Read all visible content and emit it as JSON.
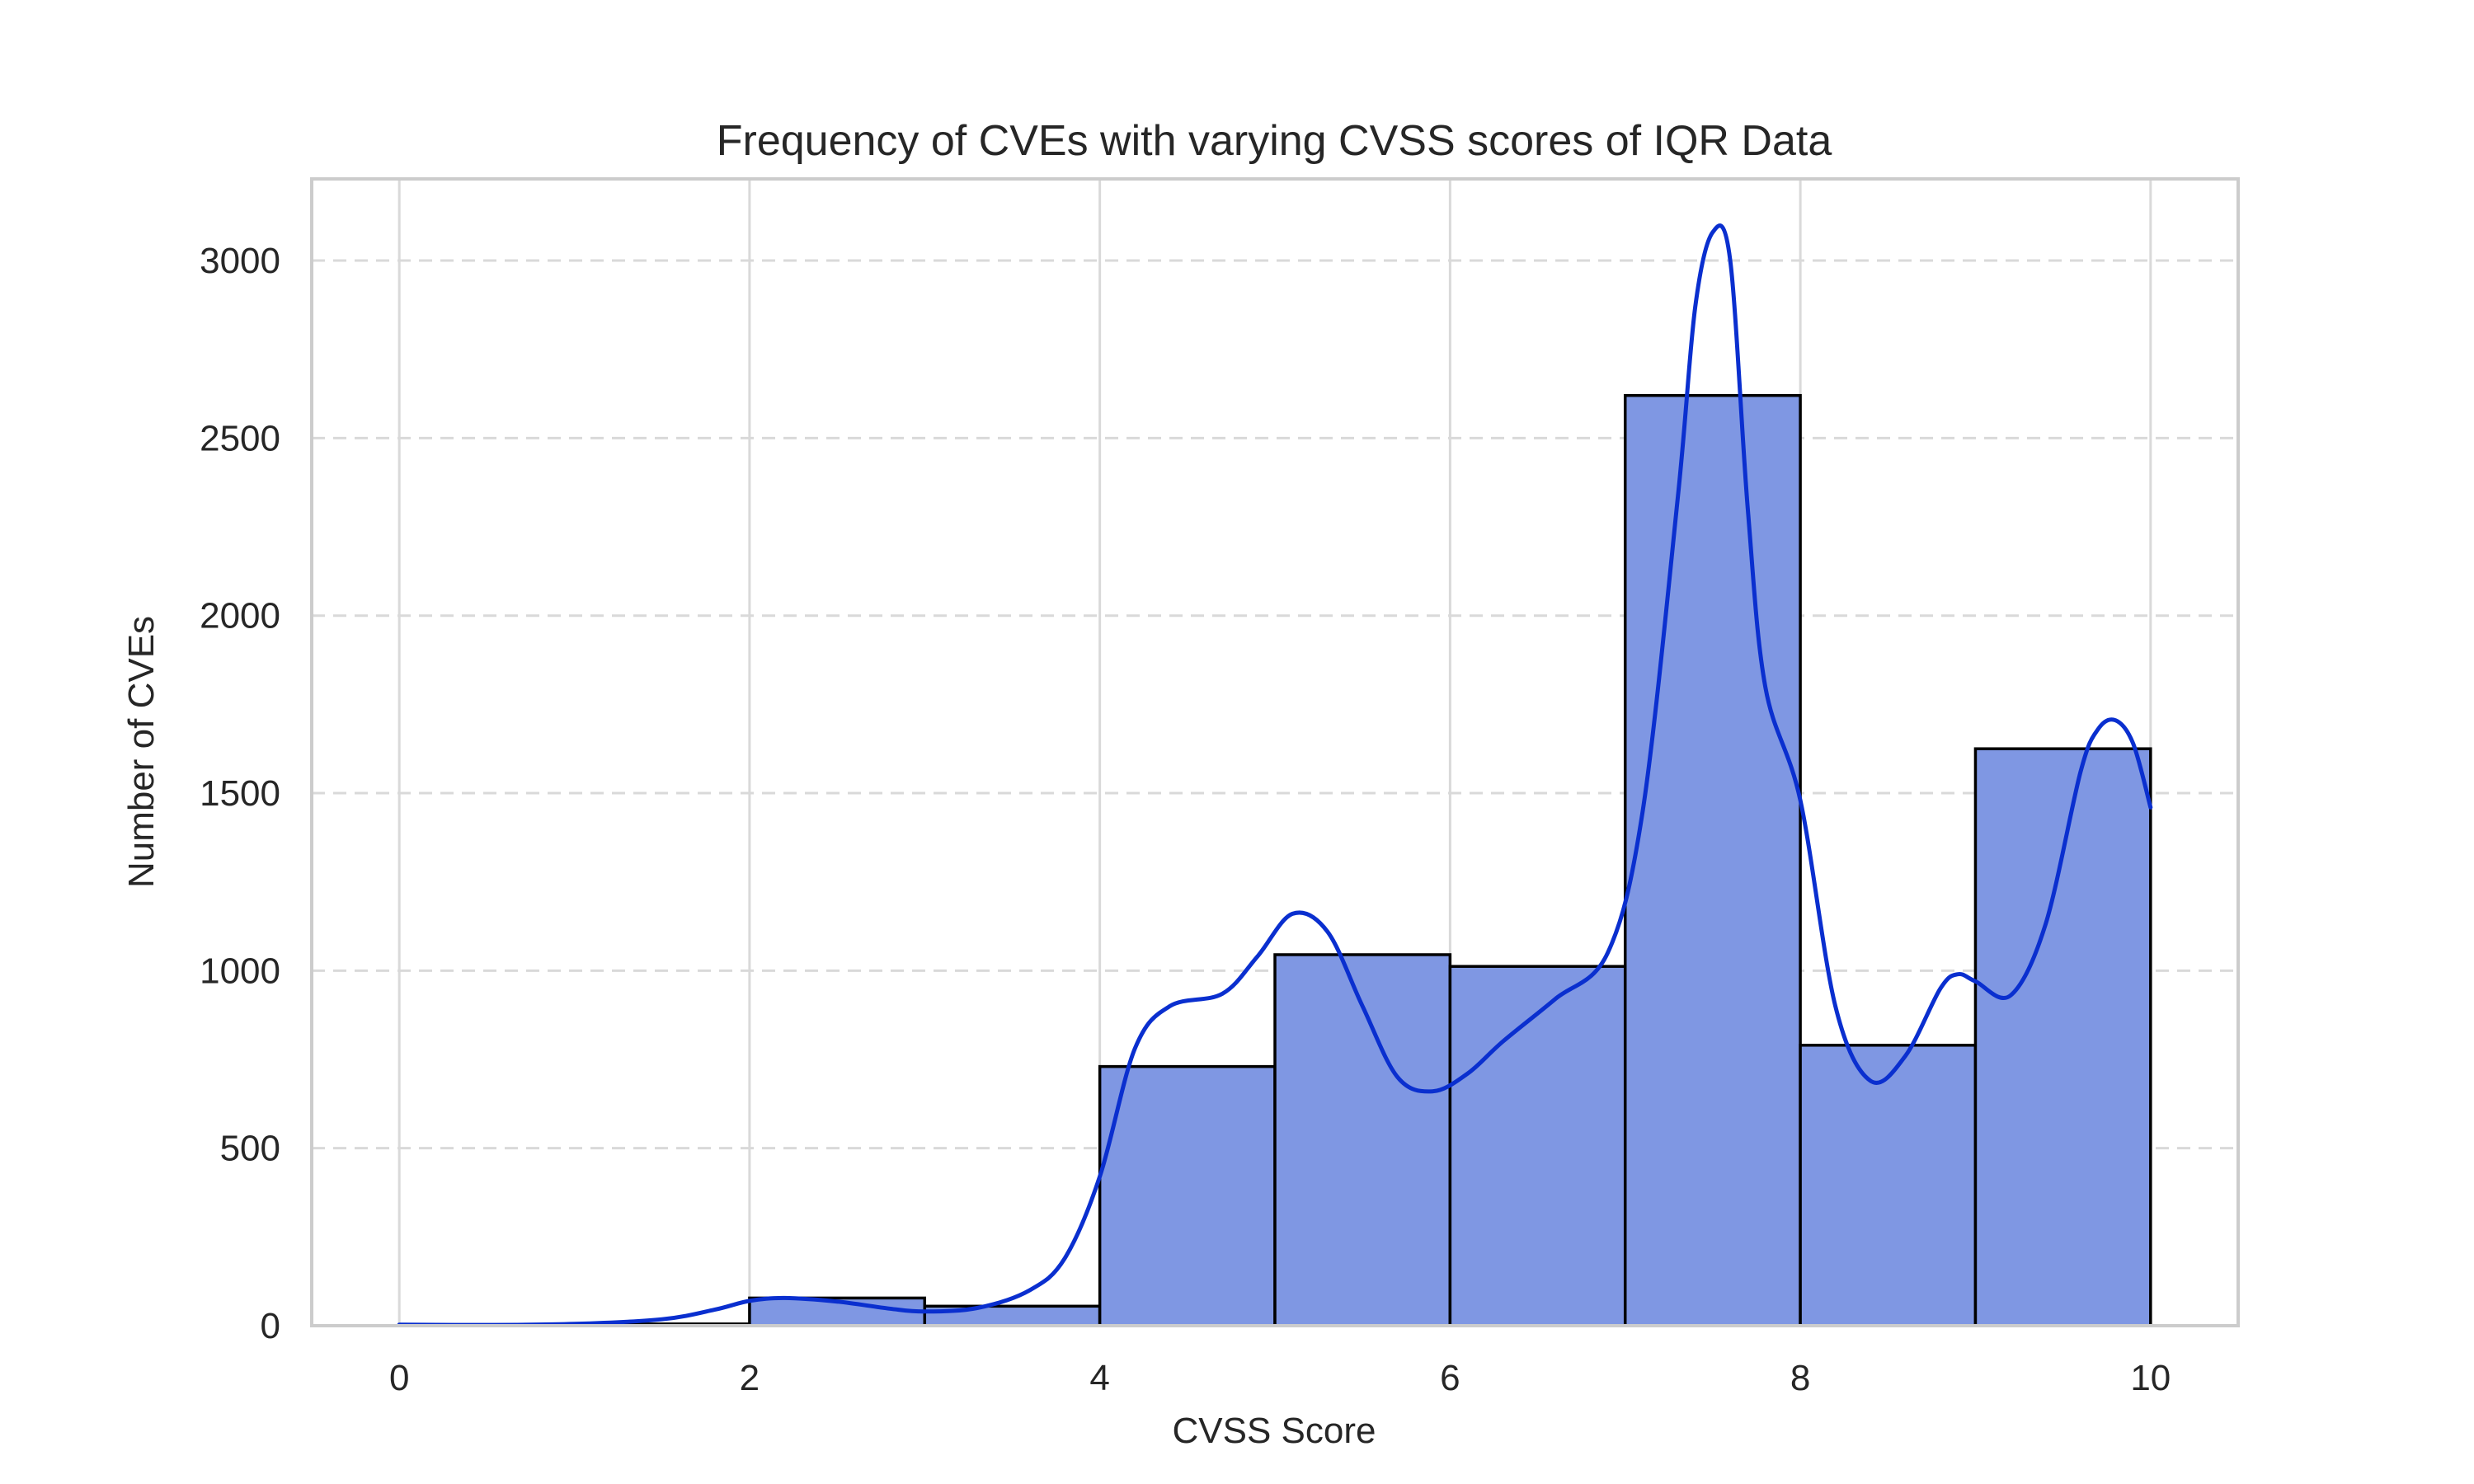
{
  "chart_data": {
    "type": "bar",
    "title": "Frequency of CVEs with varying CVSS scores of IQR Data",
    "xlabel": "CVSS Score",
    "ylabel": "Number of CVEs",
    "xlim": [
      -0.5,
      10.5
    ],
    "ylim": [
      0,
      3230
    ],
    "xticks": [
      0,
      2,
      4,
      6,
      8,
      10
    ],
    "yticks": [
      0,
      500,
      1000,
      1500,
      2000,
      2500,
      3000
    ],
    "bins": [
      {
        "start": 0,
        "end": 1,
        "value": 3
      },
      {
        "start": 1,
        "end": 2,
        "value": 5
      },
      {
        "start": 2,
        "end": 3,
        "value": 78
      },
      {
        "start": 3,
        "end": 4,
        "value": 55
      },
      {
        "start": 4,
        "end": 5,
        "value": 730
      },
      {
        "start": 5,
        "end": 6,
        "value": 1045
      },
      {
        "start": 6,
        "end": 7,
        "value": 1012
      },
      {
        "start": 7,
        "end": 8,
        "value": 2620
      },
      {
        "start": 8,
        "end": 9,
        "value": 790
      },
      {
        "start": 9,
        "end": 10,
        "value": 1625
      }
    ],
    "kde": {
      "x": [
        0,
        0.5,
        1.0,
        1.5,
        1.8,
        2.0,
        2.2,
        2.5,
        2.8,
        3.0,
        3.3,
        3.6,
        3.8,
        4.0,
        4.2,
        4.4,
        4.7,
        4.9,
        5.1,
        5.3,
        5.5,
        5.7,
        5.9,
        6.1,
        6.3,
        6.6,
        6.9,
        7.1,
        7.3,
        7.4,
        7.5,
        7.6,
        7.7,
        7.8,
        8.0,
        8.2,
        8.4,
        8.6,
        8.8,
        8.9,
        9.0,
        9.2,
        9.4,
        9.6,
        9.7,
        9.8,
        9.9,
        10.0
      ],
      "y": [
        3,
        2,
        5,
        18,
        45,
        70,
        78,
        68,
        48,
        40,
        50,
        100,
        190,
        420,
        780,
        900,
        935,
        1040,
        1160,
        1110,
        900,
        700,
        660,
        710,
        800,
        920,
        1050,
        1450,
        2330,
        2870,
        3080,
        3000,
        2300,
        1800,
        1480,
        900,
        690,
        760,
        950,
        990,
        970,
        930,
        1130,
        1560,
        1680,
        1705,
        1640,
        1460
      ]
    },
    "colors": {
      "bar_fill": "#7f97e3",
      "bar_edge": "#000000",
      "kde_line": "#0a2fcf",
      "grid": "#d9d9d9",
      "frame": "#cccccc",
      "text": "#262626"
    },
    "grid": true,
    "grid_style": "x solid, y dashed"
  }
}
